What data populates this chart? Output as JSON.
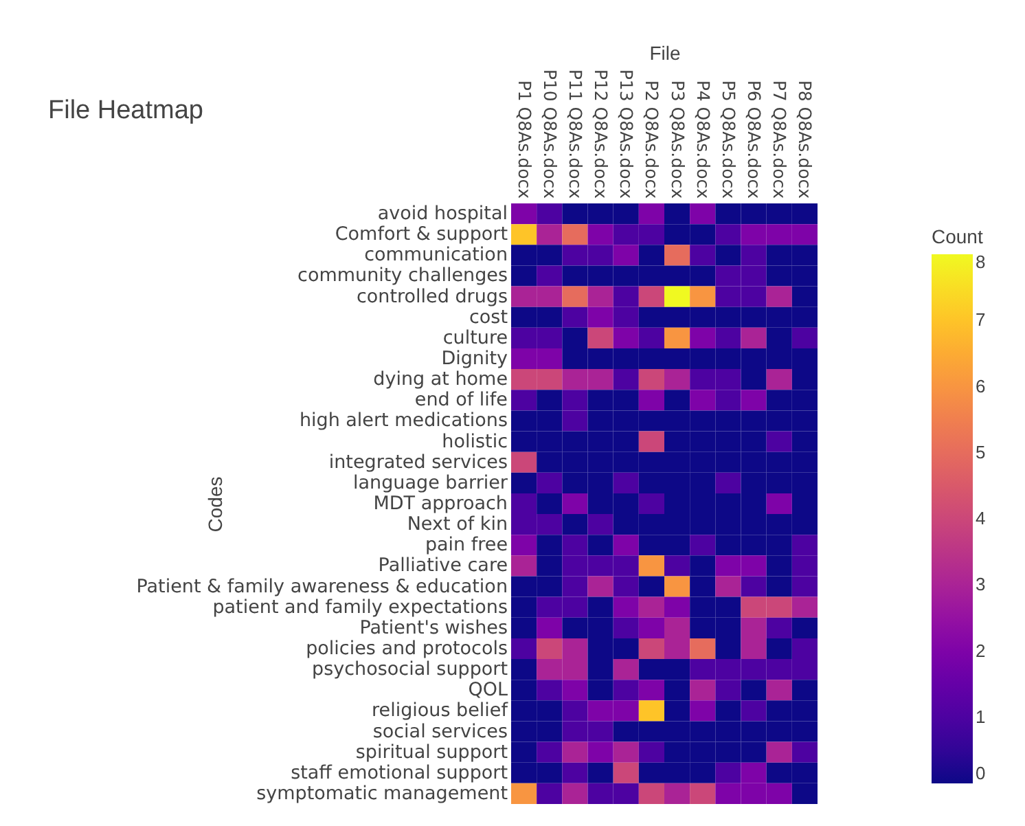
{
  "chart_data": {
    "type": "heatmap",
    "title": "File Heatmap",
    "xlabel": "File",
    "ylabel": "Codes",
    "legend_title": "Count",
    "categories": [
      "P1 Q8As.docx",
      "P10 Q8As.docx",
      "P11 Q8As.docx",
      "P12 Q8As.docx",
      "P13 Q8As.docx",
      "P2 Q8As.docx",
      "P3 Q8As.docx",
      "P4 Q8As.docx",
      "P5 Q8As.docx",
      "P6 Q8As.docx",
      "P7 Q8As.docx",
      "P8 Q8As.docx"
    ],
    "y_categories": [
      "avoid hospital",
      "Comfort & support",
      "communication",
      "community challenges",
      "controlled drugs",
      "cost",
      "culture",
      "Dignity",
      "dying at home",
      "end of life",
      "high alert medications",
      "holistic",
      "integrated services",
      "language barrier",
      "MDT approach",
      "Next of kin",
      "pain free",
      "Palliative care",
      "Patient & family awareness & education",
      "patient and family expectations",
      "Patient's wishes",
      "policies and protocols",
      "psychosocial support",
      "QOL",
      "religious belief",
      "social services",
      "spiritual support",
      "staff emotional support",
      "symptomatic management"
    ],
    "cells": [
      [
        2,
        1,
        0,
        0,
        0,
        2,
        0,
        2,
        0,
        0,
        0,
        0
      ],
      [
        7,
        3,
        5,
        2,
        1,
        1,
        0,
        0,
        1,
        2,
        2,
        2
      ],
      [
        0,
        0,
        1,
        1,
        2,
        0,
        5,
        1,
        0,
        1,
        0,
        0
      ],
      [
        0,
        1,
        0,
        0,
        0,
        0,
        0,
        0,
        1,
        1,
        0,
        0
      ],
      [
        3,
        3,
        5,
        3,
        1,
        4,
        8,
        6,
        1,
        1,
        3,
        0
      ],
      [
        0,
        0,
        1,
        2,
        1,
        0,
        0,
        0,
        0,
        0,
        0,
        0
      ],
      [
        1,
        1,
        0,
        4,
        2,
        1,
        6,
        2,
        1,
        3,
        0,
        1
      ],
      [
        2,
        2,
        0,
        0,
        0,
        0,
        0,
        0,
        0,
        0,
        0,
        0
      ],
      [
        4,
        4,
        3,
        3,
        1,
        4,
        3,
        1,
        1,
        0,
        3,
        0
      ],
      [
        1,
        0,
        1,
        0,
        0,
        2,
        0,
        2,
        1,
        2,
        0,
        0
      ],
      [
        0,
        0,
        1,
        0,
        0,
        0,
        0,
        0,
        0,
        0,
        0,
        0
      ],
      [
        0,
        0,
        0,
        0,
        0,
        4,
        0,
        0,
        0,
        0,
        1,
        0
      ],
      [
        4,
        0,
        0,
        0,
        0,
        0,
        0,
        0,
        0,
        0,
        0,
        0
      ],
      [
        0,
        1,
        0,
        0,
        1,
        0,
        0,
        0,
        1,
        0,
        0,
        0
      ],
      [
        1,
        0,
        2,
        0,
        0,
        1,
        0,
        0,
        0,
        0,
        2,
        0
      ],
      [
        1,
        1,
        0,
        1,
        0,
        0,
        0,
        0,
        0,
        0,
        0,
        0
      ],
      [
        2,
        0,
        1,
        0,
        2,
        0,
        0,
        1,
        0,
        0,
        0,
        1
      ],
      [
        3,
        0,
        1,
        1,
        1,
        6,
        1,
        0,
        2,
        2,
        0,
        1
      ],
      [
        0,
        0,
        1,
        3,
        1,
        0,
        6,
        0,
        3,
        1,
        0,
        1
      ],
      [
        0,
        1,
        1,
        0,
        2,
        3,
        2,
        0,
        0,
        4,
        4,
        3
      ],
      [
        0,
        2,
        0,
        0,
        1,
        2,
        3,
        0,
        0,
        3,
        1,
        0
      ],
      [
        1,
        4,
        3,
        0,
        0,
        4,
        3,
        5,
        0,
        3,
        0,
        1
      ],
      [
        0,
        3,
        3,
        0,
        3,
        0,
        0,
        1,
        1,
        1,
        1,
        1
      ],
      [
        0,
        1,
        2,
        0,
        1,
        2,
        0,
        3,
        1,
        0,
        3,
        0
      ],
      [
        0,
        0,
        1,
        2,
        2,
        7,
        0,
        2,
        0,
        1,
        0,
        0
      ],
      [
        0,
        0,
        1,
        1,
        0,
        0,
        0,
        0,
        0,
        0,
        0,
        0
      ],
      [
        0,
        1,
        3,
        2,
        3,
        1,
        0,
        0,
        0,
        0,
        3,
        1
      ],
      [
        0,
        0,
        1,
        0,
        4,
        0,
        0,
        0,
        1,
        2,
        0,
        0
      ],
      [
        6,
        1,
        3,
        1,
        1,
        4,
        3,
        4,
        2,
        2,
        2,
        0
      ]
    ],
    "clim": [
      0,
      8
    ],
    "cticks": [
      0,
      1,
      2,
      3,
      4,
      5,
      6,
      7,
      8
    ]
  }
}
